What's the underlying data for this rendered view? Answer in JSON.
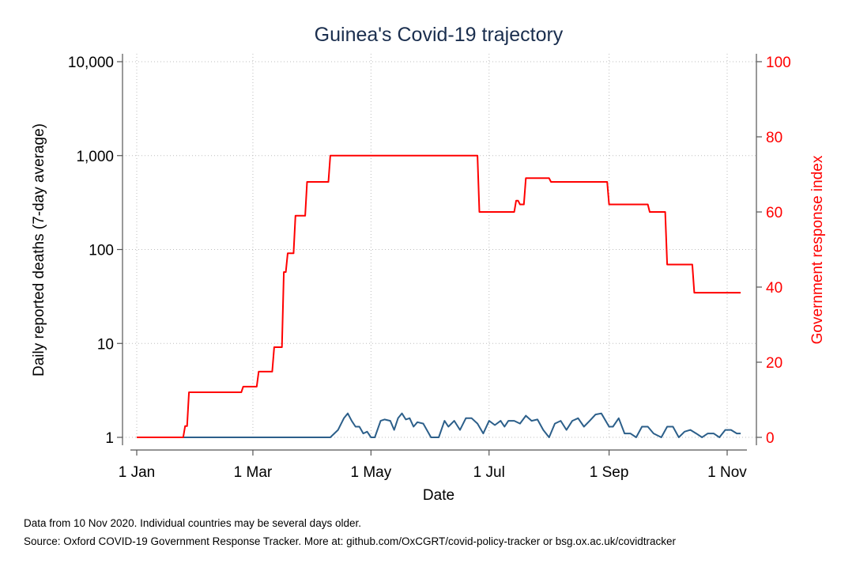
{
  "chart_data": {
    "type": "line",
    "title": "Guinea's Covid-19 trajectory",
    "xlabel": "Date",
    "ylabel_left": "Daily reported deaths (7-day average)",
    "ylabel_right": "Government response index",
    "x_ticks": [
      "1 Jan",
      "1 Mar",
      "1 May",
      "1 Jul",
      "1 Sep",
      "1 Nov"
    ],
    "y_left_scale": "log",
    "y_left_ticks": [
      "1",
      "10",
      "100",
      "1,000",
      "10,000"
    ],
    "y_left_range": [
      1,
      10000
    ],
    "y_right_ticks": [
      "0",
      "20",
      "40",
      "60",
      "80",
      "100"
    ],
    "y_right_range": [
      0,
      100
    ],
    "grid": true,
    "colors": {
      "deaths": "#2c5f8a",
      "response": "#ff0000",
      "right_axis": "#ff0000"
    },
    "series": [
      {
        "axis": "left",
        "x": [
          "2020-01-01",
          "2020-04-10",
          "2020-04-14",
          "2020-04-17",
          "2020-04-19",
          "2020-04-21",
          "2020-04-23",
          "2020-04-25",
          "2020-04-27",
          "2020-04-29",
          "2020-05-01",
          "2020-05-03",
          "2020-05-06",
          "2020-05-08",
          "2020-05-11",
          "2020-05-13",
          "2020-05-15",
          "2020-05-17",
          "2020-05-19",
          "2020-05-21",
          "2020-05-23",
          "2020-05-25",
          "2020-05-28",
          "2020-06-01",
          "2020-06-05",
          "2020-06-08",
          "2020-06-10",
          "2020-06-13",
          "2020-06-16",
          "2020-06-19",
          "2020-06-22",
          "2020-06-25",
          "2020-06-28",
          "2020-07-01",
          "2020-07-04",
          "2020-07-07",
          "2020-07-09",
          "2020-07-11",
          "2020-07-14",
          "2020-07-17",
          "2020-07-20",
          "2020-07-23",
          "2020-07-26",
          "2020-07-29",
          "2020-08-01",
          "2020-08-04",
          "2020-08-07",
          "2020-08-10",
          "2020-08-13",
          "2020-08-16",
          "2020-08-19",
          "2020-08-22",
          "2020-08-25",
          "2020-08-28",
          "2020-09-01",
          "2020-09-03",
          "2020-09-06",
          "2020-09-09",
          "2020-09-12",
          "2020-09-15",
          "2020-09-18",
          "2020-09-21",
          "2020-09-24",
          "2020-09-28",
          "2020-10-01",
          "2020-10-04",
          "2020-10-07",
          "2020-10-10",
          "2020-10-13",
          "2020-10-16",
          "2020-10-19",
          "2020-10-22",
          "2020-10-25",
          "2020-10-28",
          "2020-10-31",
          "2020-11-03",
          "2020-11-06",
          "2020-11-08"
        ],
        "values": [
          1,
          1,
          1.2,
          1.6,
          1.8,
          1.5,
          1.3,
          1.3,
          1.1,
          1.15,
          1,
          1,
          1.5,
          1.55,
          1.5,
          1.2,
          1.6,
          1.8,
          1.55,
          1.6,
          1.3,
          1.45,
          1.4,
          1,
          1,
          1.5,
          1.3,
          1.5,
          1.2,
          1.6,
          1.6,
          1.4,
          1.1,
          1.5,
          1.35,
          1.5,
          1.3,
          1.5,
          1.5,
          1.4,
          1.7,
          1.5,
          1.55,
          1.2,
          1,
          1.4,
          1.5,
          1.2,
          1.5,
          1.6,
          1.3,
          1.5,
          1.75,
          1.8,
          1.3,
          1.3,
          1.6,
          1.1,
          1.1,
          1,
          1.3,
          1.3,
          1.1,
          1,
          1.3,
          1.3,
          1,
          1.15,
          1.2,
          1.1,
          1,
          1.1,
          1.1,
          1,
          1.2,
          1.2,
          1.1,
          1.1
        ]
      },
      {
        "axis": "right",
        "x": [
          "2020-01-01",
          "2020-01-25",
          "2020-01-26",
          "2020-01-27",
          "2020-01-28",
          "2020-02-24",
          "2020-02-25",
          "2020-03-03",
          "2020-03-04",
          "2020-03-11",
          "2020-03-12",
          "2020-03-16",
          "2020-03-17",
          "2020-03-18",
          "2020-03-19",
          "2020-03-22",
          "2020-03-23",
          "2020-03-28",
          "2020-03-29",
          "2020-04-09",
          "2020-04-10",
          "2020-06-25",
          "2020-06-26",
          "2020-07-14",
          "2020-07-15",
          "2020-07-16",
          "2020-07-17",
          "2020-07-19",
          "2020-07-20",
          "2020-08-01",
          "2020-08-02",
          "2020-08-31",
          "2020-09-01",
          "2020-09-21",
          "2020-09-22",
          "2020-09-30",
          "2020-10-01",
          "2020-10-14",
          "2020-10-15",
          "2020-11-08"
        ],
        "values": [
          0,
          0,
          3,
          3,
          12,
          12,
          13.5,
          13.5,
          17.5,
          17.5,
          24,
          24,
          44,
          44,
          49,
          49,
          59,
          59,
          68,
          68,
          75,
          75,
          60,
          60,
          63,
          63,
          62,
          62,
          69,
          69,
          68,
          68,
          62,
          62,
          60,
          60,
          46,
          46,
          38.5,
          38.5
        ]
      }
    ]
  },
  "notes": {
    "line1": "Data from 10 Nov 2020. Individual countries may be several days older.",
    "line2": "Source: Oxford COVID-19 Government Response Tracker. More at: github.com/OxCGRT/covid-policy-tracker or bsg.ox.ac.uk/covidtracker"
  }
}
